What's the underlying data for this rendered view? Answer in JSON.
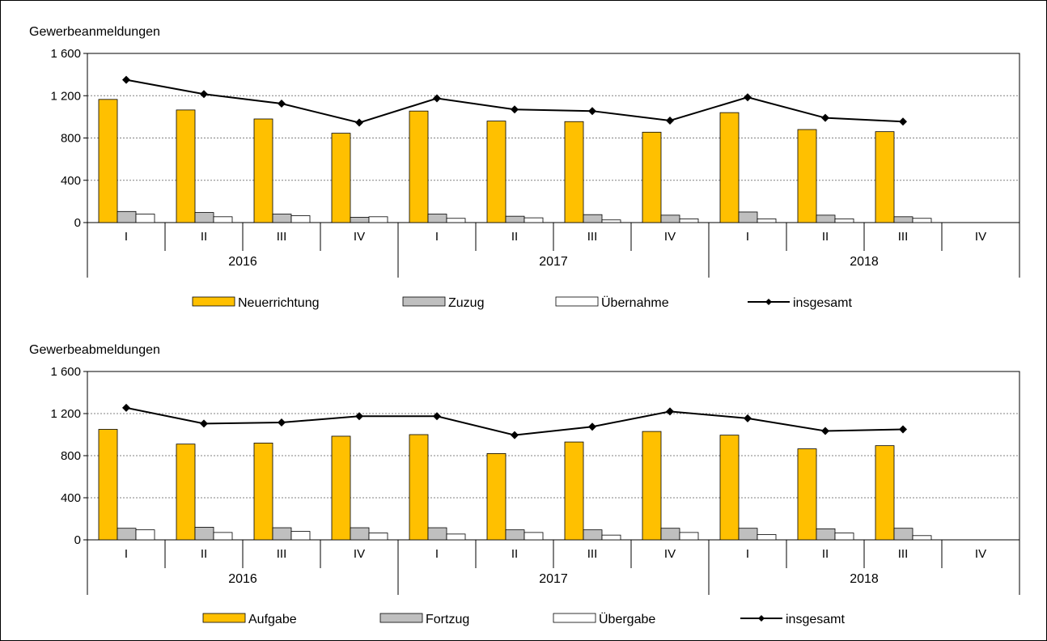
{
  "colors": {
    "bar1": "#FFC000",
    "bar2": "#BFBFBF",
    "bar3": "#FFFFFF",
    "line": "#000000",
    "grid": "#808080",
    "frame": "#000000"
  },
  "chart_data": [
    {
      "type": "bar",
      "ylabel": "Gewerbeanmeldungen",
      "ylim": [
        0,
        1600
      ],
      "yticks": [
        0,
        400,
        800,
        1200,
        1600
      ],
      "ytick_labels": [
        "0",
        "400",
        "800",
        "1 200",
        "1 600"
      ],
      "grid": true,
      "legend_position": "bottom",
      "groups": [
        "2016",
        "2017",
        "2018"
      ],
      "categories": [
        "I",
        "II",
        "III",
        "IV",
        "I",
        "II",
        "III",
        "IV",
        "I",
        "II",
        "III",
        "IV"
      ],
      "series": [
        {
          "name": "Neuerrichtung",
          "kind": "bar",
          "values": [
            1165,
            1065,
            980,
            845,
            1055,
            960,
            955,
            855,
            1040,
            880,
            860,
            null
          ]
        },
        {
          "name": "Zuzug",
          "kind": "bar",
          "values": [
            105,
            95,
            80,
            50,
            80,
            60,
            75,
            70,
            100,
            70,
            55,
            null
          ]
        },
        {
          "name": "Übernahme",
          "kind": "bar",
          "values": [
            80,
            55,
            65,
            55,
            40,
            45,
            25,
            35,
            35,
            35,
            40,
            null
          ]
        },
        {
          "name": "insgesamt",
          "kind": "line",
          "values": [
            1350,
            1215,
            1125,
            945,
            1175,
            1070,
            1055,
            965,
            1185,
            990,
            955,
            null
          ]
        }
      ]
    },
    {
      "type": "bar",
      "ylabel": "Gewerbeabmeldungen",
      "ylim": [
        0,
        1600
      ],
      "yticks": [
        0,
        400,
        800,
        1200,
        1600
      ],
      "ytick_labels": [
        "0",
        "400",
        "800",
        "1 200",
        "1 600"
      ],
      "grid": true,
      "legend_position": "bottom",
      "groups": [
        "2016",
        "2017",
        "2018"
      ],
      "categories": [
        "I",
        "II",
        "III",
        "IV",
        "I",
        "II",
        "III",
        "IV",
        "I",
        "II",
        "III",
        "IV"
      ],
      "series": [
        {
          "name": "Aufgabe",
          "kind": "bar",
          "values": [
            1050,
            910,
            920,
            985,
            1000,
            820,
            930,
            1030,
            995,
            865,
            895,
            null
          ]
        },
        {
          "name": "Fortzug",
          "kind": "bar",
          "values": [
            110,
            120,
            115,
            115,
            115,
            95,
            95,
            110,
            110,
            105,
            110,
            null
          ]
        },
        {
          "name": "Übergabe",
          "kind": "bar",
          "values": [
            95,
            70,
            80,
            65,
            55,
            70,
            45,
            70,
            50,
            65,
            40,
            null
          ]
        },
        {
          "name": "insgesamt",
          "kind": "line",
          "values": [
            1255,
            1105,
            1115,
            1175,
            1175,
            995,
            1075,
            1220,
            1155,
            1035,
            1050,
            null
          ]
        }
      ]
    }
  ]
}
